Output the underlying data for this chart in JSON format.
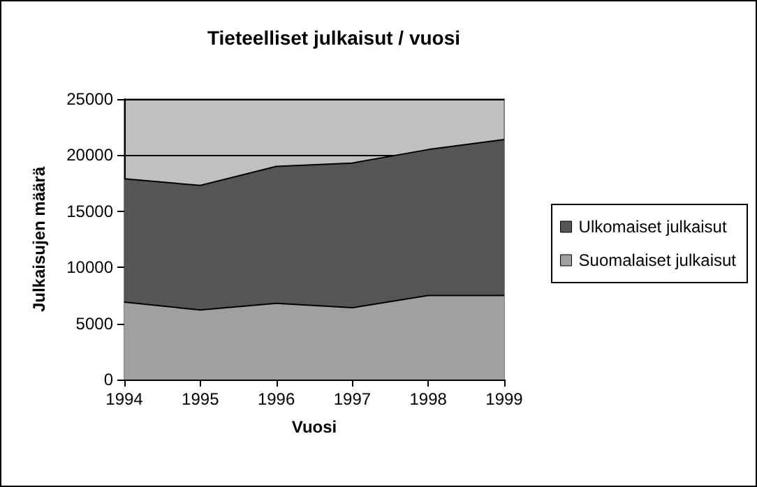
{
  "chart_data": {
    "type": "area",
    "title": "Tieteelliset julkaisut / vuosi",
    "xlabel": "Vuosi",
    "ylabel": "Julkaisujen määrä",
    "x": [
      1994,
      1995,
      1996,
      1997,
      1998,
      1999
    ],
    "stacked": true,
    "series": [
      {
        "name": "Suomalaiset julkaisut",
        "color": "#a0a0a0",
        "values": [
          6900,
          6200,
          6800,
          6400,
          7500,
          7500
        ]
      },
      {
        "name": "Ulkomaiset julkaisut",
        "color": "#555555",
        "values": [
          11000,
          11100,
          12200,
          12900,
          13000,
          13900
        ]
      }
    ],
    "xlim": [
      1994,
      1999
    ],
    "xticks": [
      1994,
      1995,
      1996,
      1997,
      1998,
      1999
    ],
    "ylim": [
      0,
      25000
    ],
    "yticks": [
      0,
      5000,
      10000,
      15000,
      20000,
      25000
    ],
    "grid": "y",
    "legend": "right"
  }
}
